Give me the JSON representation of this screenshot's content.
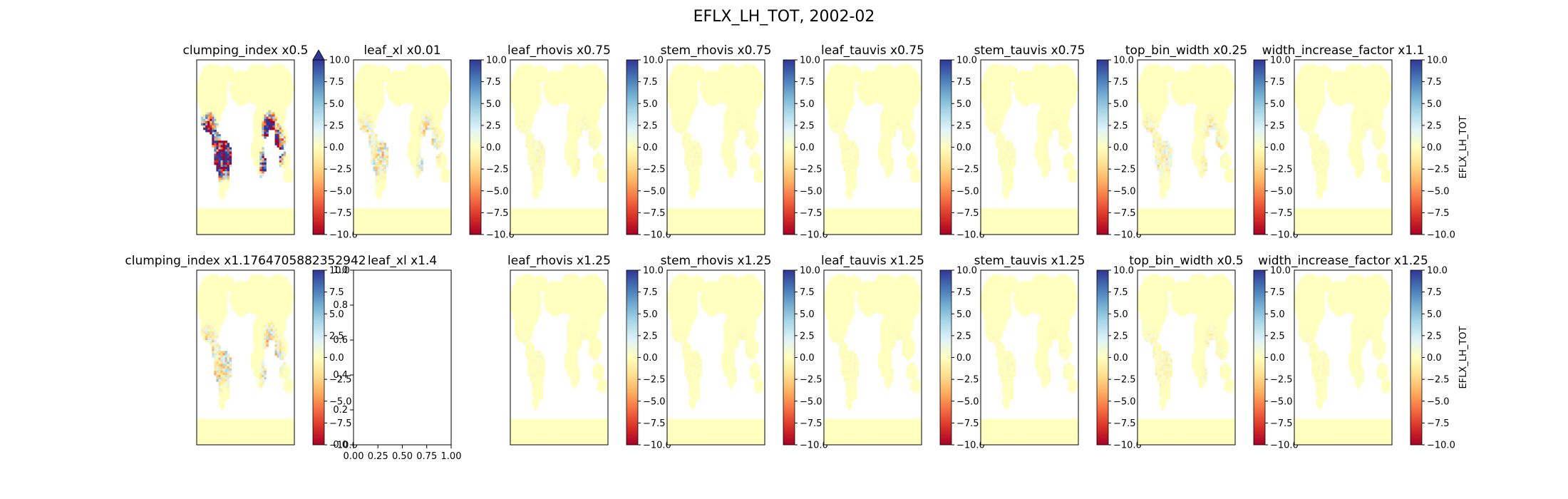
{
  "figure": {
    "title": "EFLX_LH_TOT, 2002-02"
  },
  "colormap": {
    "name": "RdYlBu",
    "stops": [
      "#a50026",
      "#d73027",
      "#f46d43",
      "#fdae61",
      "#fee090",
      "#ffffbf",
      "#e0f3f8",
      "#abd9e9",
      "#74add1",
      "#4575b4",
      "#313695"
    ]
  },
  "chart_data": [
    {
      "type": "heatmap",
      "title": "clumping_index x0.5",
      "row": 0,
      "col": 0,
      "colorbar": true,
      "colorbar_label": "EFLX_LH_TOT",
      "vmin": -10,
      "vmax": 10,
      "extend": "max",
      "intensity": 3.0,
      "colorbar_ticks": [
        "10.0",
        "7.5",
        "5.0",
        "2.5",
        "0.0",
        "−2.5",
        "−5.0",
        "−7.5",
        "−10.0"
      ]
    },
    {
      "type": "heatmap",
      "title": "leaf_xl x0.01",
      "row": 0,
      "col": 1,
      "colorbar": true,
      "colorbar_label": "EFLX_LH_TOT",
      "vmin": -10,
      "vmax": 10,
      "intensity": 0.5,
      "colorbar_ticks": [
        "10.0",
        "7.5",
        "5.0",
        "2.5",
        "0.0",
        "−2.5",
        "−5.0",
        "−7.5",
        "−10.0"
      ]
    },
    {
      "type": "heatmap",
      "title": "leaf_rhovis x0.75",
      "row": 0,
      "col": 2,
      "colorbar": true,
      "colorbar_label": "EFLX_LH_TOT",
      "vmin": -10,
      "vmax": 10,
      "intensity": 0.1,
      "colorbar_ticks": [
        "10.0",
        "7.5",
        "5.0",
        "2.5",
        "0.0",
        "−2.5",
        "−5.0",
        "−7.5",
        "−10.0"
      ]
    },
    {
      "type": "heatmap",
      "title": "stem_rhovis x0.75",
      "row": 0,
      "col": 3,
      "colorbar": true,
      "colorbar_label": "EFLX_LH_TOT",
      "vmin": -10,
      "vmax": 10,
      "intensity": 0.05,
      "colorbar_ticks": [
        "10.0",
        "7.5",
        "5.0",
        "2.5",
        "0.0",
        "−2.5",
        "−5.0",
        "−7.5",
        "−10.0"
      ]
    },
    {
      "type": "heatmap",
      "title": "leaf_tauvis x0.75",
      "row": 0,
      "col": 4,
      "colorbar": true,
      "colorbar_label": "EFLX_LH_TOT",
      "vmin": -10,
      "vmax": 10,
      "intensity": 0.05,
      "colorbar_ticks": [
        "10.0",
        "7.5",
        "5.0",
        "2.5",
        "0.0",
        "−2.5",
        "−5.0",
        "−7.5",
        "−10.0"
      ]
    },
    {
      "type": "heatmap",
      "title": "stem_tauvis x0.75",
      "row": 0,
      "col": 5,
      "colorbar": true,
      "colorbar_label": "EFLX_LH_TOT",
      "vmin": -10,
      "vmax": 10,
      "intensity": 0.05,
      "colorbar_ticks": [
        "10.0",
        "7.5",
        "5.0",
        "2.5",
        "0.0",
        "−2.5",
        "−5.0",
        "−7.5",
        "−10.0"
      ]
    },
    {
      "type": "heatmap",
      "title": "top_bin_width x0.25",
      "row": 0,
      "col": 6,
      "colorbar": true,
      "colorbar_label": "EFLX_LH_TOT",
      "vmin": -10,
      "vmax": 10,
      "intensity": 0.3,
      "colorbar_ticks": [
        "10.0",
        "7.5",
        "5.0",
        "2.5",
        "0.0",
        "−2.5",
        "−5.0",
        "−7.5",
        "−10.0"
      ]
    },
    {
      "type": "heatmap",
      "title": "width_increase_factor x1.1",
      "row": 0,
      "col": 7,
      "colorbar": true,
      "colorbar_label": "EFLX_LH_TOT",
      "vmin": -10,
      "vmax": 10,
      "intensity": 0.05,
      "colorbar_ticks": [
        "10.0",
        "7.5",
        "5.0",
        "2.5",
        "0.0",
        "−2.5",
        "−5.0",
        "−7.5",
        "−10.0"
      ]
    },
    {
      "type": "heatmap",
      "title": "clumping_index x1.1764705882352942",
      "row": 1,
      "col": 0,
      "colorbar": true,
      "colorbar_label": "EFLX_LH_TOT",
      "vmin": -10,
      "vmax": 10,
      "intensity": 0.6,
      "colorbar_ticks": [
        "10.0",
        "7.5",
        "5.0",
        "2.5",
        "0.0",
        "−2.5",
        "−5.0",
        "−7.5",
        "−10.0"
      ]
    },
    {
      "type": "scatter",
      "title": "leaf_xl x1.4",
      "row": 1,
      "col": 1,
      "empty": true,
      "colorbar": false,
      "colorbar_label": "EFLX_LH_TOT",
      "xlim": [
        0,
        1
      ],
      "ylim": [
        0,
        1
      ],
      "x_ticks": [
        "0.00",
        "0.25",
        "0.50",
        "0.75",
        "1.00"
      ],
      "y_ticks": [
        "0.0",
        "0.2",
        "0.4",
        "0.6",
        "0.8",
        "1.0"
      ]
    },
    {
      "type": "heatmap",
      "title": "leaf_rhovis x1.25",
      "row": 1,
      "col": 2,
      "colorbar": true,
      "colorbar_label": "EFLX_LH_TOT",
      "vmin": -10,
      "vmax": 10,
      "intensity": 0.05,
      "colorbar_ticks": [
        "10.0",
        "7.5",
        "5.0",
        "2.5",
        "0.0",
        "−2.5",
        "−5.0",
        "−7.5",
        "−10.0"
      ]
    },
    {
      "type": "heatmap",
      "title": "stem_rhovis x1.25",
      "row": 1,
      "col": 3,
      "colorbar": true,
      "colorbar_label": "EFLX_LH_TOT",
      "vmin": -10,
      "vmax": 10,
      "intensity": 0.05,
      "colorbar_ticks": [
        "10.0",
        "7.5",
        "5.0",
        "2.5",
        "0.0",
        "−2.5",
        "−5.0",
        "−7.5",
        "−10.0"
      ]
    },
    {
      "type": "heatmap",
      "title": "leaf_tauvis x1.25",
      "row": 1,
      "col": 4,
      "colorbar": true,
      "colorbar_label": "EFLX_LH_TOT",
      "vmin": -10,
      "vmax": 10,
      "intensity": 0.05,
      "colorbar_ticks": [
        "10.0",
        "7.5",
        "5.0",
        "2.5",
        "0.0",
        "−2.5",
        "−5.0",
        "−7.5",
        "−10.0"
      ]
    },
    {
      "type": "heatmap",
      "title": "stem_tauvis x1.25",
      "row": 1,
      "col": 5,
      "colorbar": true,
      "colorbar_label": "EFLX_LH_TOT",
      "vmin": -10,
      "vmax": 10,
      "intensity": 0.05,
      "colorbar_ticks": [
        "10.0",
        "7.5",
        "5.0",
        "2.5",
        "0.0",
        "−2.5",
        "−5.0",
        "−7.5",
        "−10.0"
      ]
    },
    {
      "type": "heatmap",
      "title": "top_bin_width x0.5",
      "row": 1,
      "col": 6,
      "colorbar": true,
      "colorbar_label": "EFLX_LH_TOT",
      "vmin": -10,
      "vmax": 10,
      "intensity": 0.15,
      "colorbar_ticks": [
        "10.0",
        "7.5",
        "5.0",
        "2.5",
        "0.0",
        "−2.5",
        "−5.0",
        "−7.5",
        "−10.0"
      ]
    },
    {
      "type": "heatmap",
      "title": "width_increase_factor x1.25",
      "row": 1,
      "col": 7,
      "colorbar": true,
      "colorbar_label": "EFLX_LH_TOT",
      "vmin": -10,
      "vmax": 10,
      "intensity": 0.05,
      "colorbar_ticks": [
        "10.0",
        "7.5",
        "5.0",
        "2.5",
        "0.0",
        "−2.5",
        "−5.0",
        "−7.5",
        "−10.0"
      ]
    }
  ]
}
